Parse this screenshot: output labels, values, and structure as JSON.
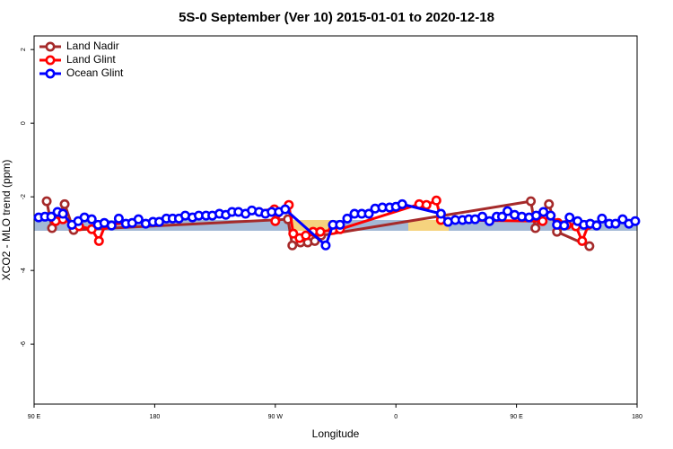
{
  "chart_data": {
    "type": "line",
    "title": "5S-0 September (Ver 10)   2015-01-01 to 2020-12-18",
    "x_label": "Longitude",
    "y_label": "XCO2 - MLO trend (ppm)",
    "xlim": [
      90,
      540
    ],
    "ylim": [
      -7.63,
      2.37
    ],
    "xticks": [
      {
        "value": 90,
        "label": "90 E"
      },
      180,
      {
        "value": 270,
        "label": "90 W"
      },
      {
        "value": 360,
        "label": "0"
      },
      {
        "value": 450,
        "label": "90 E"
      },
      {
        "value": 540,
        "label": "180"
      }
    ],
    "yticks": [
      2,
      0,
      -2,
      -4,
      -6
    ],
    "legend": "top-left",
    "series": [
      {
        "name": "Land Nadir",
        "color": "#a52a2a",
        "x": [
          99.4,
          103.4,
          112.8,
          119.5,
          279.4,
          282.7,
          288.8,
          294.2,
          299.5,
          304.2,
          460.7,
          464.1,
          474.2,
          480.2,
          504.4
        ],
        "values": [
          -2.12,
          -2.85,
          -2.2,
          -2.9,
          -2.61,
          -3.32,
          -3.24,
          -3.24,
          -3.2,
          -3.05,
          -2.12,
          -2.85,
          -2.2,
          -2.95,
          -3.34
        ]
      },
      {
        "name": "Land Glint",
        "color": "#ff0000",
        "x": [
          106.1,
          111.5,
          123.6,
          133.0,
          138.4,
          143.1,
          269.3,
          270.0,
          280.1,
          283.4,
          288.1,
          292.8,
          298.2,
          303.6,
          313.0,
          318.3,
          377.4,
          382.8,
          390.2,
          393.6,
          469.5,
          475.5,
          480.9,
          487.6,
          494.3,
          499.0,
          503.7
        ],
        "values": [
          -2.66,
          -2.61,
          -2.8,
          -2.88,
          -3.2,
          -2.76,
          -2.34,
          -2.66,
          -2.22,
          -3.0,
          -3.12,
          -3.05,
          -2.95,
          -2.95,
          -2.9,
          -2.88,
          -2.2,
          -2.22,
          -2.1,
          -2.63,
          -2.66,
          -2.51,
          -2.71,
          -2.76,
          -2.8,
          -3.2,
          -2.76
        ]
      },
      {
        "name": "Ocean Glint",
        "color": "#0000ff",
        "x": [
          93.4,
          98.1,
          102.8,
          107.5,
          111.5,
          118.2,
          122.9,
          127.6,
          133.0,
          137.7,
          142.4,
          147.8,
          153.2,
          158.5,
          163.2,
          167.9,
          173.3,
          178.7,
          183.4,
          188.7,
          193.4,
          198.1,
          202.8,
          208.2,
          212.9,
          218.3,
          223.0,
          228.3,
          233.1,
          237.7,
          242.5,
          247.8,
          252.5,
          257.9,
          262.6,
          267.3,
          272.7,
          277.4,
          307.6,
          313.0,
          318.3,
          323.7,
          329.1,
          334.5,
          339.8,
          344.5,
          349.9,
          355.3,
          360.0,
          364.7,
          393.6,
          398.9,
          404.3,
          409.7,
          414.4,
          419.1,
          424.5,
          429.8,
          435.2,
          439.2,
          443.3,
          448.6,
          454.0,
          459.4,
          464.7,
          470.1,
          475.5,
          480.2,
          485.6,
          489.6,
          495.6,
          500.3,
          505.0,
          509.8,
          513.8,
          519.2,
          523.9,
          529.2,
          533.9,
          538.6
        ],
        "values": [
          -2.56,
          -2.54,
          -2.54,
          -2.41,
          -2.46,
          -2.76,
          -2.66,
          -2.56,
          -2.61,
          -2.76,
          -2.71,
          -2.78,
          -2.59,
          -2.73,
          -2.71,
          -2.61,
          -2.73,
          -2.68,
          -2.68,
          -2.59,
          -2.59,
          -2.59,
          -2.51,
          -2.56,
          -2.51,
          -2.51,
          -2.51,
          -2.46,
          -2.49,
          -2.41,
          -2.41,
          -2.46,
          -2.37,
          -2.41,
          -2.46,
          -2.41,
          -2.41,
          -2.34,
          -3.32,
          -2.76,
          -2.76,
          -2.59,
          -2.46,
          -2.46,
          -2.46,
          -2.32,
          -2.29,
          -2.29,
          -2.27,
          -2.2,
          -2.46,
          -2.68,
          -2.63,
          -2.63,
          -2.61,
          -2.61,
          -2.54,
          -2.66,
          -2.54,
          -2.54,
          -2.39,
          -2.49,
          -2.54,
          -2.56,
          -2.51,
          -2.41,
          -2.51,
          -2.76,
          -2.78,
          -2.56,
          -2.66,
          -2.76,
          -2.73,
          -2.78,
          -2.59,
          -2.73,
          -2.73,
          -2.61,
          -2.73,
          -2.66
        ]
      }
    ]
  }
}
